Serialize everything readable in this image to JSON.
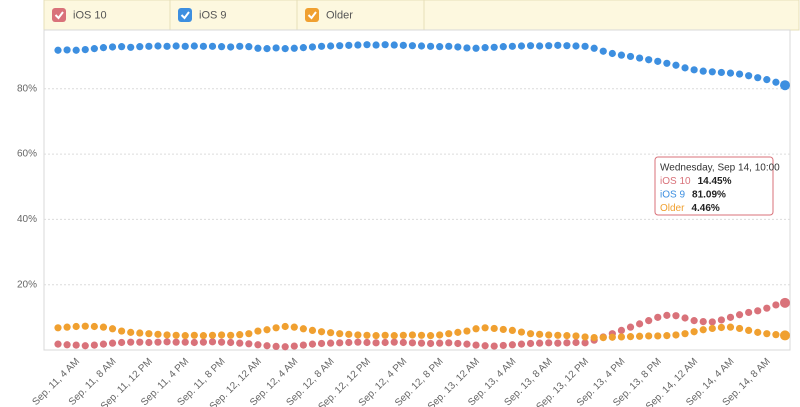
{
  "chart_data": {
    "type": "line",
    "categories": [
      null,
      null,
      "Sep. 11, 4 AM",
      null,
      null,
      null,
      "Sep. 11, 8 AM",
      null,
      null,
      null,
      "Sep. 11, 12 PM",
      null,
      null,
      null,
      "Sep. 11, 4 PM",
      null,
      null,
      null,
      "Sep. 11, 8 PM",
      null,
      null,
      null,
      "Sep. 12, 12 AM",
      null,
      null,
      null,
      "Sep. 12, 4 AM",
      null,
      null,
      null,
      "Sep. 12, 8 AM",
      null,
      null,
      null,
      "Sep. 12, 12 PM",
      null,
      null,
      null,
      "Sep. 12, 4 PM",
      null,
      null,
      null,
      "Sep. 12, 8 PM",
      null,
      null,
      null,
      "Sep. 13, 12 AM",
      null,
      null,
      null,
      "Sep. 13, 4 AM",
      null,
      null,
      null,
      "Sep. 13, 8 AM",
      null,
      null,
      null,
      "Sep. 13, 12 PM",
      null,
      null,
      null,
      "Sep. 13, 4 PM",
      null,
      null,
      null,
      "Sep. 13, 8 PM",
      null,
      null,
      null,
      "Sep. 14, 12 AM",
      null,
      null,
      null,
      "Sep. 14, 4 AM",
      null,
      null,
      null,
      "Sep. 14, 8 AM",
      null,
      null
    ],
    "series": [
      {
        "name": "iOS 10",
        "color": "#d9727a",
        "values": [
          1.8,
          1.6,
          1.5,
          1.3,
          1.5,
          1.8,
          2.1,
          2.3,
          2.4,
          2.4,
          2.3,
          2.4,
          2.5,
          2.4,
          2.4,
          2.3,
          2.4,
          2.5,
          2.4,
          2.3,
          2.1,
          1.9,
          1.6,
          1.3,
          1.1,
          1.0,
          1.2,
          1.5,
          1.8,
          2.0,
          2.1,
          2.2,
          2.3,
          2.4,
          2.3,
          2.2,
          2.3,
          2.4,
          2.3,
          2.2,
          2.1,
          2.0,
          2.1,
          2.2,
          2.0,
          1.8,
          1.5,
          1.3,
          1.2,
          1.4,
          1.6,
          1.8,
          2.0,
          2.1,
          2.2,
          2.1,
          2.2,
          2.3,
          2.2,
          3.0,
          4.0,
          5.0,
          6.0,
          7.0,
          8.0,
          9.0,
          10.0,
          10.6,
          10.5,
          9.8,
          9.0,
          8.7,
          8.6,
          9.2,
          10.0,
          10.8,
          11.5,
          12.0,
          12.8,
          13.8,
          14.45
        ]
      },
      {
        "name": "iOS 9",
        "color": "#3d8fe0",
        "values": [
          91.8,
          91.9,
          91.8,
          92.0,
          92.3,
          92.6,
          92.8,
          92.9,
          92.7,
          92.9,
          93.0,
          93.1,
          93.0,
          93.1,
          93.0,
          93.1,
          93.0,
          93.0,
          92.9,
          92.8,
          93.0,
          92.9,
          92.4,
          92.3,
          92.5,
          92.3,
          92.4,
          92.6,
          92.8,
          93.0,
          93.1,
          93.2,
          93.3,
          93.4,
          93.5,
          93.4,
          93.5,
          93.4,
          93.3,
          93.2,
          93.1,
          93.0,
          92.9,
          93.0,
          92.8,
          92.5,
          92.4,
          92.6,
          92.7,
          92.9,
          93.0,
          93.1,
          93.2,
          93.1,
          93.2,
          93.3,
          93.2,
          93.1,
          93.0,
          92.4,
          91.5,
          90.8,
          90.3,
          89.9,
          89.4,
          88.9,
          88.4,
          87.8,
          87.2,
          86.4,
          85.8,
          85.4,
          85.2,
          85.0,
          84.8,
          84.5,
          84.0,
          83.4,
          82.8,
          82.0,
          81.09
        ]
      },
      {
        "name": "Older",
        "color": "#f0a030",
        "values": [
          6.8,
          7.0,
          7.2,
          7.3,
          7.2,
          7.0,
          6.5,
          5.8,
          5.4,
          5.2,
          5.0,
          4.8,
          4.6,
          4.5,
          4.4,
          4.5,
          4.4,
          4.5,
          4.6,
          4.5,
          4.7,
          5.0,
          5.8,
          6.2,
          6.8,
          7.2,
          7.0,
          6.5,
          6.0,
          5.6,
          5.3,
          5.0,
          4.8,
          4.6,
          4.5,
          4.4,
          4.5,
          4.4,
          4.5,
          4.6,
          4.5,
          4.4,
          4.6,
          5.0,
          5.4,
          5.8,
          6.5,
          6.8,
          6.6,
          6.3,
          6.0,
          5.5,
          5.0,
          4.8,
          4.6,
          4.5,
          4.4,
          4.3,
          4.0,
          3.8,
          3.8,
          3.9,
          4.0,
          4.1,
          4.2,
          4.3,
          4.3,
          4.4,
          4.6,
          5.0,
          5.6,
          6.2,
          6.6,
          6.9,
          7.0,
          6.6,
          6.0,
          5.4,
          5.0,
          4.7,
          4.46
        ]
      }
    ],
    "ylim": [
      0,
      98
    ],
    "yticks": [
      {
        "value": 20,
        "label": "20%"
      },
      {
        "value": 40,
        "label": "40%"
      },
      {
        "value": 60,
        "label": "60%"
      },
      {
        "value": 80,
        "label": "80%"
      }
    ],
    "grid": true,
    "tooltip": {
      "title": "Wednesday, Sep 14, 10:00",
      "labels": [
        "14.45%",
        "81.09%",
        "4.46%"
      ]
    }
  }
}
